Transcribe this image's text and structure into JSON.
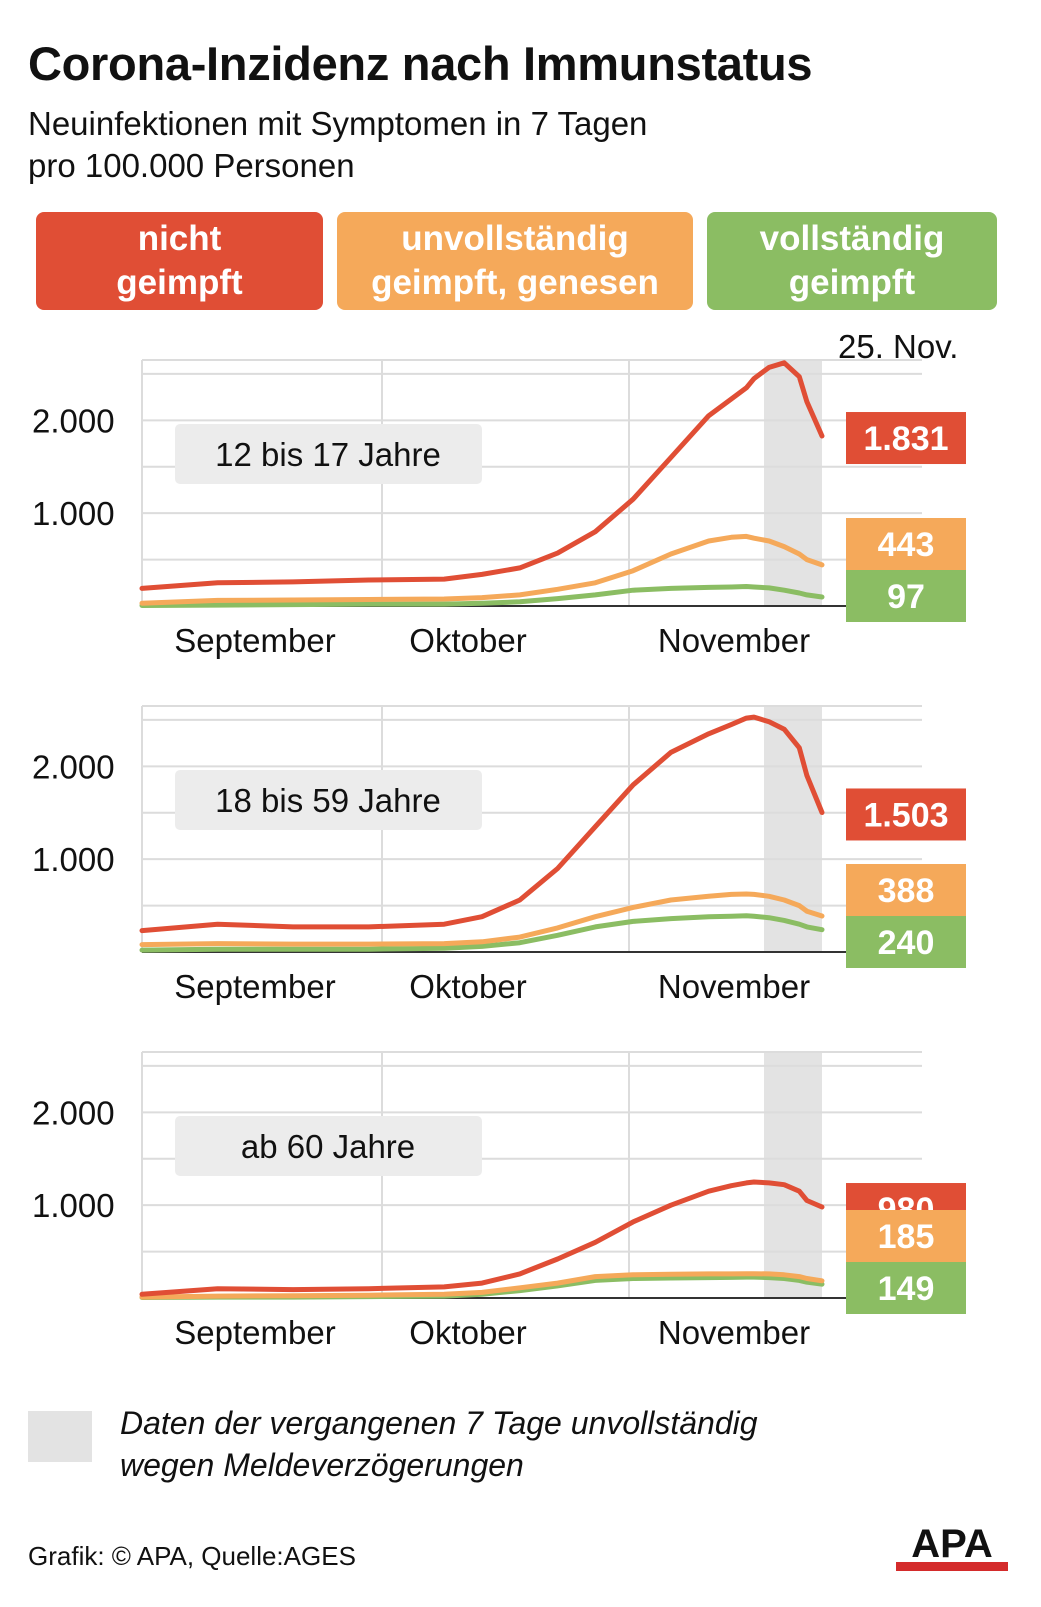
{
  "header": {
    "title": "Corona-Inzidenz nach Immunstatus",
    "subtitle_line1": "Neuinfektionen mit Symptomen in 7 Tagen",
    "subtitle_line2": "pro 100.000 Personen"
  },
  "legend": [
    {
      "line1": "nicht",
      "line2": "geimpft",
      "color": "#e04e35"
    },
    {
      "line1": "unvollständig",
      "line2": "geimpft, genesen",
      "color": "#f5a95a"
    },
    {
      "line1": "vollständig",
      "line2": "geimpft",
      "color": "#8bbd63"
    }
  ],
  "date_label": "25. Nov.",
  "footer": {
    "note_line1": "Daten der vergangenen 7 Tage unvollständig",
    "note_line2": "wegen Meldeverzögerungen",
    "source": "Grafik: © APA, Quelle:AGES",
    "logo_text": "APA"
  },
  "chart_data": [
    {
      "type": "line",
      "title": "12 bis 17 Jahre",
      "x_ticks": [
        "September",
        "Oktober",
        "November"
      ],
      "y_ticks": [
        "2.000",
        "1.000"
      ],
      "ylim": [
        0,
        2650
      ],
      "x": [
        0,
        10,
        20,
        30,
        40,
        45,
        50,
        55,
        60,
        65,
        70,
        75,
        78,
        80,
        81,
        83,
        85,
        87,
        88,
        90
      ],
      "series": [
        {
          "name": "nicht geimpft",
          "color": "#e04e35",
          "values": [
            190,
            250,
            260,
            280,
            290,
            340,
            410,
            570,
            800,
            1150,
            1600,
            2050,
            2230,
            2350,
            2450,
            2570,
            2620,
            2470,
            2200,
            1831
          ],
          "end_label": "1.831"
        },
        {
          "name": "unvollständig geimpft, genesen",
          "color": "#f5a95a",
          "values": [
            30,
            60,
            65,
            70,
            75,
            90,
            120,
            180,
            250,
            380,
            560,
            700,
            740,
            750,
            730,
            700,
            640,
            560,
            500,
            443
          ],
          "end_label": "443"
        },
        {
          "name": "vollständig geimpft",
          "color": "#8bbd63",
          "values": [
            5,
            10,
            15,
            20,
            20,
            30,
            45,
            80,
            120,
            170,
            190,
            200,
            205,
            210,
            205,
            195,
            170,
            140,
            120,
            97
          ],
          "end_label": "97"
        }
      ]
    },
    {
      "type": "line",
      "title": "18 bis 59 Jahre",
      "x_ticks": [
        "September",
        "Oktober",
        "November"
      ],
      "y_ticks": [
        "2.000",
        "1.000"
      ],
      "ylim": [
        0,
        2650
      ],
      "x": [
        0,
        10,
        20,
        30,
        40,
        45,
        50,
        55,
        60,
        65,
        70,
        75,
        78,
        80,
        81,
        83,
        85,
        87,
        88,
        90
      ],
      "series": [
        {
          "name": "nicht geimpft",
          "color": "#e04e35",
          "values": [
            230,
            300,
            270,
            270,
            300,
            380,
            560,
            900,
            1350,
            1800,
            2150,
            2350,
            2450,
            2520,
            2530,
            2480,
            2400,
            2200,
            1900,
            1503
          ],
          "end_label": "1.503"
        },
        {
          "name": "unvollständig geimpft, genesen",
          "color": "#f5a95a",
          "values": [
            80,
            90,
            85,
            85,
            90,
            110,
            160,
            260,
            380,
            480,
            560,
            600,
            620,
            625,
            620,
            600,
            560,
            500,
            440,
            388
          ],
          "end_label": "388"
        },
        {
          "name": "vollständig geimpft",
          "color": "#8bbd63",
          "values": [
            20,
            30,
            30,
            30,
            40,
            60,
            100,
            180,
            270,
            330,
            360,
            380,
            385,
            390,
            385,
            370,
            340,
            300,
            270,
            240
          ],
          "end_label": "240"
        }
      ]
    },
    {
      "type": "line",
      "title": "ab 60 Jahre",
      "x_ticks": [
        "September",
        "Oktober",
        "November"
      ],
      "y_ticks": [
        "2.000",
        "1.000"
      ],
      "ylim": [
        0,
        2650
      ],
      "x": [
        0,
        10,
        20,
        30,
        40,
        45,
        50,
        55,
        60,
        65,
        70,
        75,
        78,
        80,
        81,
        83,
        85,
        87,
        88,
        90
      ],
      "series": [
        {
          "name": "nicht geimpft",
          "color": "#e04e35",
          "values": [
            40,
            100,
            90,
            100,
            120,
            160,
            260,
            420,
            600,
            820,
            1000,
            1150,
            1210,
            1240,
            1250,
            1240,
            1220,
            1150,
            1050,
            980
          ],
          "end_label": "980"
        },
        {
          "name": "unvollständig geimpft, genesen",
          "color": "#f5a95a",
          "values": [
            10,
            20,
            25,
            30,
            40,
            60,
            110,
            160,
            230,
            250,
            255,
            260,
            260,
            262,
            262,
            260,
            250,
            230,
            210,
            185
          ],
          "end_label": "185"
        },
        {
          "name": "vollständig geimpft",
          "color": "#8bbd63",
          "values": [
            5,
            10,
            10,
            15,
            20,
            40,
            80,
            130,
            190,
            210,
            215,
            220,
            222,
            225,
            225,
            220,
            210,
            190,
            170,
            149
          ],
          "end_label": "149"
        }
      ]
    }
  ]
}
